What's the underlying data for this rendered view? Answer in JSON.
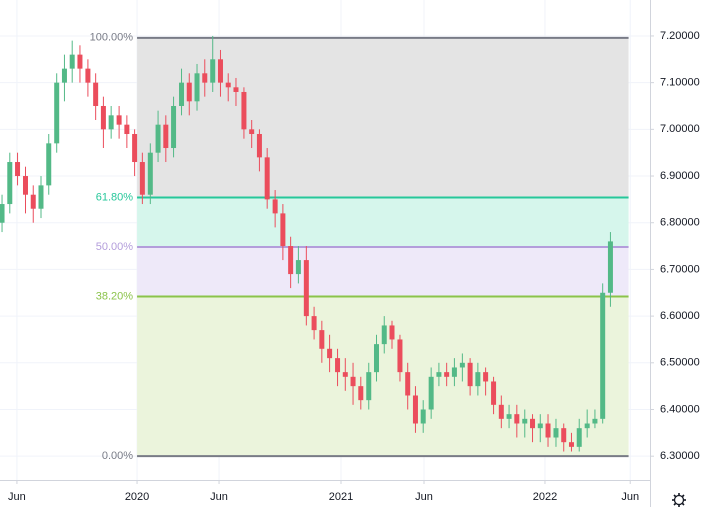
{
  "chart_data": {
    "type": "candlestick",
    "xlim": [
      2019.328,
      2022.515
    ],
    "ylim": [
      6.249,
      7.277
    ],
    "xticks": [
      {
        "value": 2019.411,
        "label": "Jun"
      },
      2020,
      {
        "value": 2020.402,
        "label": "Jun"
      },
      2021,
      {
        "value": 2021.407,
        "label": "Jun"
      },
      2022,
      {
        "value": 2022.418,
        "label": "Jun"
      }
    ],
    "yticks": [
      {
        "value": 7.2,
        "label": "7.20000"
      },
      {
        "value": 7.1,
        "label": "7.10000"
      },
      {
        "value": 7.0,
        "label": "7.00000"
      },
      {
        "value": 6.9,
        "label": "6.90000"
      },
      {
        "value": 6.8,
        "label": "6.80000"
      },
      {
        "value": 6.7,
        "label": "6.70000"
      },
      {
        "value": 6.6,
        "label": "6.60000"
      },
      {
        "value": 6.5,
        "label": "6.50000"
      },
      {
        "value": 6.4,
        "label": "6.40000"
      },
      {
        "value": 6.3,
        "label": "6.30000"
      }
    ],
    "grid": true,
    "up_color": "#53b987",
    "down_color": "#eb4d5c",
    "x": [
      2019.338,
      2019.376,
      2019.414,
      2019.453,
      2019.491,
      2019.529,
      2019.567,
      2019.606,
      2019.644,
      2019.682,
      2019.72,
      2019.759,
      2019.797,
      2019.835,
      2019.873,
      2019.912,
      2019.95,
      2019.988,
      2020.026,
      2020.065,
      2020.103,
      2020.141,
      2020.179,
      2020.218,
      2020.256,
      2020.294,
      2020.332,
      2020.371,
      2020.409,
      2020.447,
      2020.485,
      2020.524,
      2020.562,
      2020.6,
      2020.638,
      2020.677,
      2020.715,
      2020.753,
      2020.791,
      2020.83,
      2020.868,
      2020.906,
      2020.944,
      2020.983,
      2021.021,
      2021.059,
      2021.097,
      2021.136,
      2021.174,
      2021.212,
      2021.25,
      2021.289,
      2021.327,
      2021.365,
      2021.403,
      2021.442,
      2021.48,
      2021.518,
      2021.556,
      2021.595,
      2021.633,
      2021.671,
      2021.709,
      2021.748,
      2021.786,
      2021.824,
      2021.862,
      2021.901,
      2021.939,
      2021.977,
      2022.015,
      2022.054,
      2022.092,
      2022.13,
      2022.168,
      2022.207,
      2022.245,
      2022.283,
      2022.321
    ],
    "open": [
      6.8,
      6.84,
      6.93,
      6.9,
      6.86,
      6.83,
      6.88,
      6.97,
      7.1,
      7.13,
      7.16,
      7.13,
      7.1,
      7.05,
      7.0,
      7.03,
      7.01,
      6.99,
      6.93,
      6.86,
      6.95,
      7.01,
      6.96,
      7.05,
      7.1,
      7.06,
      7.12,
      7.1,
      7.15,
      7.1,
      7.09,
      7.08,
      7.0,
      6.99,
      6.94,
      6.85,
      6.82,
      6.75,
      6.69,
      6.72,
      6.6,
      6.57,
      6.53,
      6.51,
      6.48,
      6.47,
      6.45,
      6.42,
      6.48,
      6.54,
      6.58,
      6.55,
      6.48,
      6.43,
      6.37,
      6.4,
      6.47,
      6.48,
      6.47,
      6.49,
      6.5,
      6.45,
      6.48,
      6.46,
      6.41,
      6.38,
      6.39,
      6.37,
      6.38,
      6.36,
      6.37,
      6.34,
      6.36,
      6.33,
      6.32,
      6.36,
      6.37,
      6.38,
      6.65
    ],
    "high": [
      6.86,
      6.95,
      6.95,
      6.92,
      6.88,
      6.9,
      6.99,
      7.12,
      7.16,
      7.19,
      7.18,
      7.15,
      7.12,
      7.07,
      7.05,
      7.05,
      7.03,
      7.0,
      6.95,
      6.97,
      7.04,
      7.03,
      7.07,
      7.13,
      7.12,
      7.14,
      7.15,
      7.2,
      7.17,
      7.12,
      7.11,
      7.09,
      7.02,
      7.0,
      6.96,
      6.87,
      6.84,
      6.77,
      6.75,
      6.75,
      6.62,
      6.59,
      6.56,
      6.53,
      6.51,
      6.5,
      6.47,
      6.5,
      6.56,
      6.6,
      6.59,
      6.56,
      6.5,
      6.45,
      6.42,
      6.49,
      6.5,
      6.5,
      6.51,
      6.52,
      6.51,
      6.5,
      6.49,
      6.47,
      6.43,
      6.41,
      6.41,
      6.4,
      6.39,
      6.39,
      6.39,
      6.38,
      6.37,
      6.35,
      6.38,
      6.4,
      6.4,
      6.67,
      6.78
    ],
    "low": [
      6.78,
      6.82,
      6.88,
      6.82,
      6.8,
      6.81,
      6.86,
      6.95,
      7.06,
      7.1,
      7.1,
      7.07,
      7.02,
      6.96,
      6.98,
      6.98,
      6.96,
      6.9,
      6.84,
      6.84,
      6.93,
      6.93,
      6.94,
      7.03,
      7.03,
      7.04,
      7.07,
      7.08,
      7.07,
      7.06,
      7.05,
      6.98,
      6.96,
      6.91,
      6.83,
      6.79,
      6.72,
      6.66,
      6.67,
      6.58,
      6.55,
      6.5,
      6.48,
      6.45,
      6.44,
      6.41,
      6.4,
      6.4,
      6.46,
      6.52,
      6.53,
      6.46,
      6.4,
      6.35,
      6.35,
      6.38,
      6.45,
      6.45,
      6.45,
      6.46,
      6.43,
      6.43,
      6.43,
      6.39,
      6.36,
      6.36,
      6.34,
      6.34,
      6.33,
      6.33,
      6.32,
      6.32,
      6.31,
      6.31,
      6.31,
      6.34,
      6.36,
      6.37,
      6.62
    ],
    "close": [
      6.84,
      6.93,
      6.9,
      6.86,
      6.83,
      6.88,
      6.97,
      7.1,
      7.13,
      7.16,
      7.13,
      7.1,
      7.05,
      7.0,
      7.03,
      7.01,
      6.99,
      6.93,
      6.86,
      6.95,
      7.01,
      6.96,
      7.05,
      7.1,
      7.06,
      7.12,
      7.1,
      7.15,
      7.1,
      7.09,
      7.08,
      7.0,
      6.99,
      6.94,
      6.85,
      6.82,
      6.75,
      6.69,
      6.72,
      6.6,
      6.57,
      6.53,
      6.51,
      6.48,
      6.47,
      6.45,
      6.42,
      6.48,
      6.54,
      6.58,
      6.55,
      6.48,
      6.43,
      6.37,
      6.4,
      6.47,
      6.48,
      6.47,
      6.49,
      6.5,
      6.45,
      6.48,
      6.46,
      6.41,
      6.38,
      6.39,
      6.37,
      6.38,
      6.36,
      6.37,
      6.34,
      6.36,
      6.33,
      6.32,
      6.36,
      6.37,
      6.38,
      6.65,
      6.76
    ],
    "fib": {
      "start": 2020.0,
      "end": 2022.41,
      "levels": [
        {
          "value": 100,
          "label": "100.00%",
          "price": 7.196,
          "color": "#787b86",
          "fill": "#e4e4e4"
        },
        {
          "value": 61.8,
          "label": "61.80%",
          "price": 6.854,
          "color": "#26c79a",
          "fill": "#d6f6ec"
        },
        {
          "value": 50,
          "label": "50.00%",
          "price": 6.748,
          "color": "#b39ddb",
          "fill": "#eee9f9"
        },
        {
          "value": 38.2,
          "label": "38.20%",
          "price": 6.642,
          "color": "#8bc34a",
          "fill": "#ebf4dc"
        },
        {
          "value": 0,
          "label": "0.00%",
          "price": 6.3,
          "color": "#787b86",
          "fill": "none"
        }
      ]
    }
  }
}
